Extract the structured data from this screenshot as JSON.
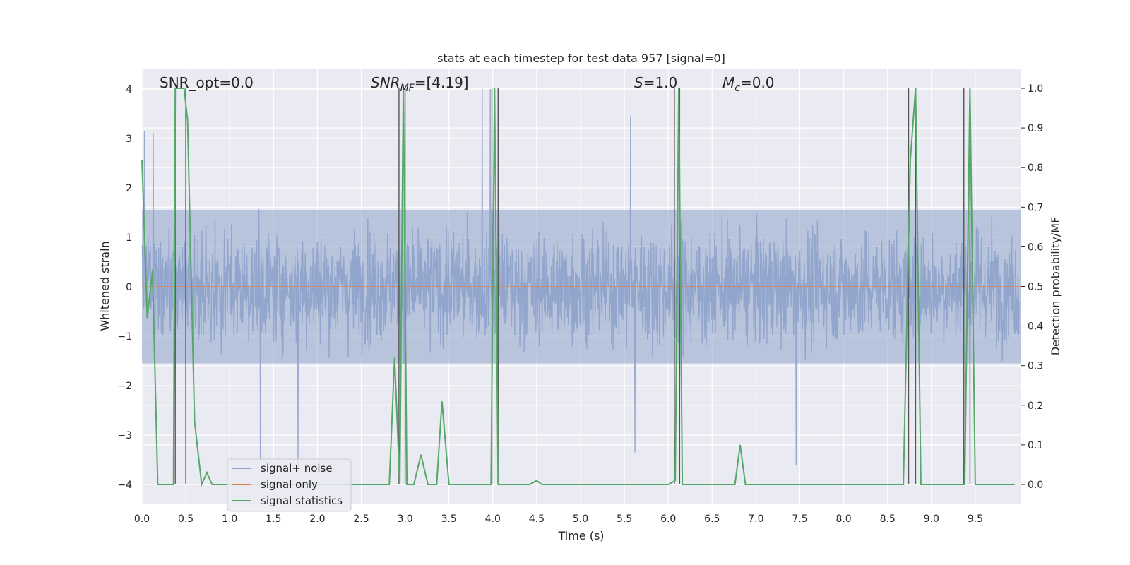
{
  "chart_data": {
    "type": "line",
    "title": "stats at each timestep for test data 957 [signal=0]",
    "xlabel": "Time (s)",
    "ylabel": "Whitened strain",
    "y2label": "Detection probability/MF",
    "xlim": [
      0.0,
      10.0
    ],
    "ylim": [
      -4.4,
      4.4
    ],
    "y2lim": [
      -0.05,
      1.05
    ],
    "xticks": [
      "0.0",
      "0.5",
      "1.0",
      "1.5",
      "2.0",
      "2.5",
      "3.0",
      "3.5",
      "4.0",
      "4.5",
      "5.0",
      "5.5",
      "6.0",
      "6.5",
      "7.0",
      "7.5",
      "8.0",
      "8.5",
      "9.0",
      "9.5"
    ],
    "yticks": [
      "4",
      "3",
      "2",
      "1",
      "0",
      "−1",
      "−2",
      "−3",
      "−4"
    ],
    "y2ticks": [
      "1.0",
      "0.9",
      "0.8",
      "0.7",
      "0.6",
      "0.5",
      "0.4",
      "0.3",
      "0.2",
      "0.1",
      "0.0"
    ],
    "grid": true,
    "legend_position": "lower-left",
    "annotations": {
      "snr_opt": "SNR_opt=0.0",
      "snr_mf_main": "SNR",
      "snr_mf_sub": "MF",
      "snr_mf_value": "=[4.19]",
      "s_label": "S",
      "s_value": "=1.0",
      "mc_main": "M",
      "mc_sub": "c",
      "mc_value": "=0.0"
    },
    "series": [
      {
        "name": "signal+ noise",
        "color": "#8ea2cb",
        "kind": "noise",
        "typical_range": [
          -2.0,
          2.0
        ],
        "peaks": [
          [
            0.03,
            3.15
          ],
          [
            0.13,
            3.1
          ],
          [
            3.88,
            4.0
          ],
          [
            3.97,
            4.0
          ],
          [
            5.57,
            3.45
          ],
          [
            5.62,
            -3.35
          ],
          [
            7.46,
            -3.6
          ],
          [
            1.35,
            -3.5
          ],
          [
            1.78,
            -3.65
          ]
        ]
      },
      {
        "name": "signal only",
        "color": "#dd8452",
        "values": [
          [
            0.0,
            0.0
          ],
          [
            10.0,
            0.0
          ]
        ]
      },
      {
        "name": "signal statistics",
        "color": "#55a868",
        "axis": "right",
        "values": [
          [
            0.0,
            0.82
          ],
          [
            0.06,
            0.42
          ],
          [
            0.12,
            0.54
          ],
          [
            0.18,
            0.0
          ],
          [
            0.24,
            0.0
          ],
          [
            0.3,
            0.0
          ],
          [
            0.36,
            0.0
          ],
          [
            0.38,
            1.0
          ],
          [
            0.44,
            1.0
          ],
          [
            0.48,
            1.0
          ],
          [
            0.52,
            0.92
          ],
          [
            0.6,
            0.16
          ],
          [
            0.68,
            0.0
          ],
          [
            0.74,
            0.03
          ],
          [
            0.8,
            0.0
          ],
          [
            0.86,
            0.0
          ],
          [
            1.5,
            0.0
          ],
          [
            2.0,
            0.0
          ],
          [
            2.5,
            0.0
          ],
          [
            2.82,
            0.0
          ],
          [
            2.88,
            0.32
          ],
          [
            2.94,
            0.0
          ],
          [
            2.98,
            1.0
          ],
          [
            3.02,
            0.0
          ],
          [
            3.1,
            0.0
          ],
          [
            3.18,
            0.075
          ],
          [
            3.26,
            0.0
          ],
          [
            3.36,
            0.0
          ],
          [
            3.42,
            0.21
          ],
          [
            3.5,
            0.0
          ],
          [
            3.6,
            0.0
          ],
          [
            3.98,
            0.0
          ],
          [
            4.02,
            1.0
          ],
          [
            4.06,
            0.0
          ],
          [
            4.12,
            0.0
          ],
          [
            4.42,
            0.0
          ],
          [
            4.5,
            0.01
          ],
          [
            4.56,
            0.0
          ],
          [
            5.5,
            0.0
          ],
          [
            6.0,
            0.0
          ],
          [
            6.08,
            0.01
          ],
          [
            6.12,
            1.0
          ],
          [
            6.16,
            0.0
          ],
          [
            6.6,
            0.0
          ],
          [
            6.76,
            0.0
          ],
          [
            6.82,
            0.1
          ],
          [
            6.88,
            0.0
          ],
          [
            8.0,
            0.0
          ],
          [
            8.68,
            0.0
          ],
          [
            8.76,
            0.82
          ],
          [
            8.82,
            1.0
          ],
          [
            8.88,
            0.0
          ],
          [
            9.3,
            0.0
          ],
          [
            9.38,
            0.0
          ],
          [
            9.44,
            1.0
          ],
          [
            9.5,
            0.0
          ],
          [
            9.95,
            0.0
          ]
        ]
      }
    ],
    "marker_lines": [
      0.38,
      0.5,
      2.93,
      3.0,
      3.99,
      4.06,
      6.07,
      6.13,
      8.74,
      8.82,
      9.37,
      9.44
    ]
  }
}
